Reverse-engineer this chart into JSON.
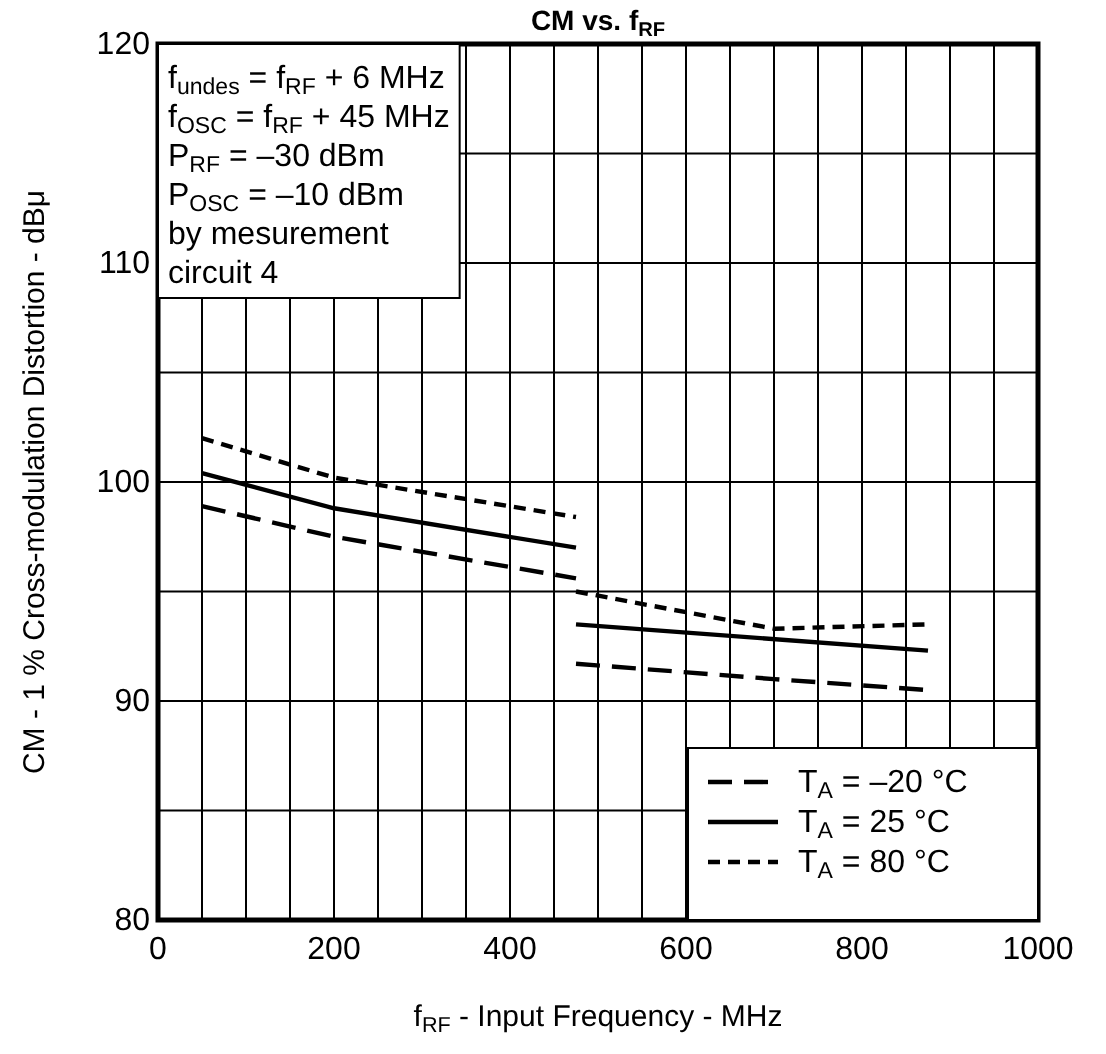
{
  "chart_data": {
    "type": "line",
    "title": "CM  vs.  f$_{RF}$",
    "xlabel": "f$_{RF}$ - Input Frequency - MHz",
    "ylabel": "CM - 1 % Cross-modulation Distortion - dBμ",
    "annotations": [
      "f$_{undes}$ = f$_{RF}$ + 6 MHz",
      "f$_{OSC}$ = f$_{RF}$ + 45 MHz",
      "P$_{RF}$ = –30 dBm",
      "P$_{OSC}$ = –10 dBm",
      "by mesurement",
      "circuit 4"
    ],
    "xlim": [
      0,
      1000
    ],
    "ylim": [
      80,
      120
    ],
    "xticks": [
      0,
      {
        "value": 50,
        "label": null
      },
      {
        "value": 100,
        "label": null
      },
      {
        "value": 150,
        "label": null
      },
      200,
      {
        "value": 250,
        "label": null
      },
      {
        "value": 300,
        "label": null
      },
      {
        "value": 350,
        "label": null
      },
      400,
      {
        "value": 450,
        "label": null
      },
      {
        "value": 500,
        "label": null
      },
      {
        "value": 550,
        "label": null
      },
      600,
      {
        "value": 650,
        "label": null
      },
      {
        "value": 700,
        "label": null
      },
      {
        "value": 750,
        "label": null
      },
      800,
      {
        "value": 850,
        "label": null
      },
      {
        "value": 900,
        "label": null
      },
      {
        "value": 950,
        "label": null
      },
      1000
    ],
    "yticks": [
      80,
      {
        "value": 85,
        "label": null
      },
      90,
      {
        "value": 95,
        "label": null
      },
      100,
      {
        "value": 105,
        "label": null
      },
      110,
      {
        "value": 115,
        "label": null
      },
      120
    ],
    "grid": true,
    "legend": "bottom right",
    "marker": "none",
    "series": [
      {
        "name": "T$_{A}$ = –20 °C",
        "color": "#000000",
        "line_style": "dashed",
        "x": [
          50,
          200,
          475
        ],
        "values": [
          98.9,
          97.5,
          95.6
        ]
      },
      {
        "name": "T$_{A}$ = 25 °C",
        "color": "#000000",
        "line_style": "solid",
        "x": [
          50,
          200,
          475
        ],
        "values": [
          100.4,
          98.8,
          97.0
        ]
      },
      {
        "name": "T$_{A}$ = 80 °C",
        "color": "#000000",
        "line_style": "dotted",
        "x": [
          50,
          200,
          475
        ],
        "values": [
          102.0,
          100.2,
          98.4
        ]
      },
      {
        "color": "#000000",
        "line_style": "dashed",
        "x": [
          475,
          700,
          875
        ],
        "values": [
          91.7,
          91.0,
          90.5
        ]
      },
      {
        "color": "#000000",
        "line_style": "solid",
        "x": [
          475,
          875
        ],
        "values": [
          93.5,
          92.3
        ]
      },
      {
        "color": "#000000",
        "line_style": "dotted",
        "x": [
          475,
          700,
          875
        ],
        "values": [
          95.0,
          93.3,
          93.5
        ]
      }
    ]
  }
}
